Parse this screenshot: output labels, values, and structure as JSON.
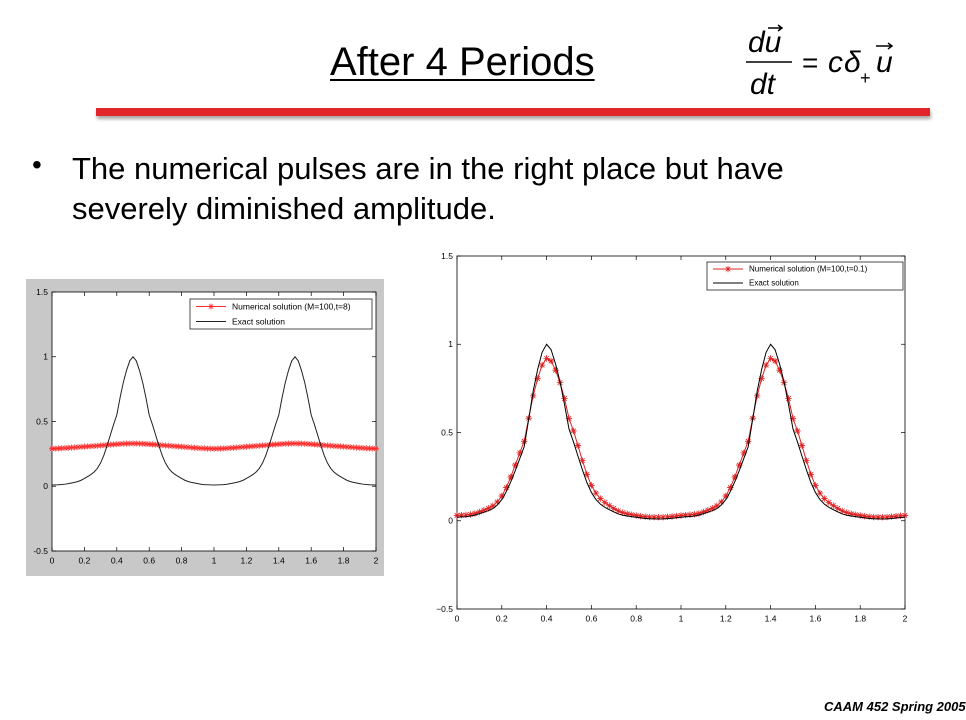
{
  "slide": {
    "title": "After 4 Periods",
    "bullet": "The numerical pulses are in the right place but have severely diminished amplitude.",
    "footer": "CAAM 452 Spring 2005",
    "accent_color": "#e0262a"
  },
  "equation": {
    "numerator": "du",
    "denominator": "dt",
    "equals": "=",
    "coefficient": "c",
    "operator": "δ",
    "subscript": "+",
    "vector": "u"
  },
  "chart_data": [
    {
      "type": "line",
      "title": "",
      "xlabel": "",
      "ylabel": "",
      "xlim": [
        0,
        2
      ],
      "ylim": [
        -0.5,
        1.5
      ],
      "x_ticks": [
        "0",
        "0.2",
        "0.4",
        "0.6",
        "0.8",
        "1",
        "1.2",
        "1.4",
        "1.6",
        "1.8",
        "2"
      ],
      "y_ticks": [
        "-0.5",
        "0",
        "0.5",
        "1",
        "1.5"
      ],
      "grid": false,
      "legend_position": "top-right",
      "series": [
        {
          "name": "Numerical solution (M=100,t=8)",
          "color": "#ff2a2a",
          "marker": "star",
          "x": [
            0,
            0.25,
            0.5,
            0.75,
            1,
            1.25,
            1.5,
            1.75,
            2
          ],
          "y": [
            0.29,
            0.31,
            0.33,
            0.31,
            0.29,
            0.31,
            0.33,
            0.31,
            0.29
          ]
        },
        {
          "name": "Exact solution",
          "color": "#222222",
          "marker": "none",
          "x": [
            0,
            0.1,
            0.2,
            0.3,
            0.4,
            0.45,
            0.5,
            0.55,
            0.6,
            0.7,
            0.8,
            0.9,
            1,
            1.1,
            1.2,
            1.3,
            1.4,
            1.45,
            1.5,
            1.55,
            1.6,
            1.7,
            1.8,
            1.9,
            2
          ],
          "y": [
            0.01,
            0.02,
            0.06,
            0.18,
            0.55,
            0.85,
            1.0,
            0.85,
            0.55,
            0.18,
            0.06,
            0.02,
            0.01,
            0.02,
            0.06,
            0.18,
            0.55,
            0.85,
            1.0,
            0.85,
            0.55,
            0.18,
            0.06,
            0.02,
            0.01
          ]
        }
      ]
    },
    {
      "type": "line",
      "title": "",
      "xlabel": "",
      "ylabel": "",
      "xlim": [
        0,
        2
      ],
      "ylim": [
        -0.5,
        1.5
      ],
      "x_ticks": [
        "0",
        "0.2",
        "0.4",
        "0.6",
        "0.8",
        "1",
        "1.2",
        "1.4",
        "1.6",
        "1.8",
        "2"
      ],
      "y_ticks": [
        "−0.5",
        "0",
        "0.5",
        "1",
        "1.5"
      ],
      "grid": false,
      "legend_position": "top-right",
      "series": [
        {
          "name": "Numerical solution (M=100,t=0.1)",
          "color": "#e02020",
          "marker": "star",
          "x": [
            0,
            0.1,
            0.2,
            0.3,
            0.35,
            0.4,
            0.45,
            0.5,
            0.6,
            0.7,
            0.8,
            0.9,
            1,
            1.1,
            1.2,
            1.3,
            1.35,
            1.4,
            1.45,
            1.5,
            1.6,
            1.7,
            1.8,
            1.9,
            2
          ],
          "y": [
            0.03,
            0.05,
            0.14,
            0.45,
            0.76,
            0.92,
            0.82,
            0.58,
            0.2,
            0.07,
            0.03,
            0.02,
            0.03,
            0.05,
            0.14,
            0.45,
            0.76,
            0.92,
            0.82,
            0.58,
            0.2,
            0.07,
            0.03,
            0.02,
            0.03
          ]
        },
        {
          "name": "Exact solution",
          "color": "#000000",
          "marker": "none",
          "x": [
            0,
            0.1,
            0.2,
            0.3,
            0.35,
            0.4,
            0.45,
            0.5,
            0.6,
            0.7,
            0.8,
            0.9,
            1,
            1.1,
            1.2,
            1.3,
            1.35,
            1.4,
            1.45,
            1.5,
            1.6,
            1.7,
            1.8,
            1.9,
            2
          ],
          "y": [
            0.02,
            0.04,
            0.12,
            0.42,
            0.8,
            1.0,
            0.84,
            0.52,
            0.16,
            0.05,
            0.02,
            0.01,
            0.02,
            0.04,
            0.12,
            0.42,
            0.8,
            1.0,
            0.84,
            0.52,
            0.16,
            0.05,
            0.02,
            0.01,
            0.02
          ]
        }
      ]
    }
  ]
}
